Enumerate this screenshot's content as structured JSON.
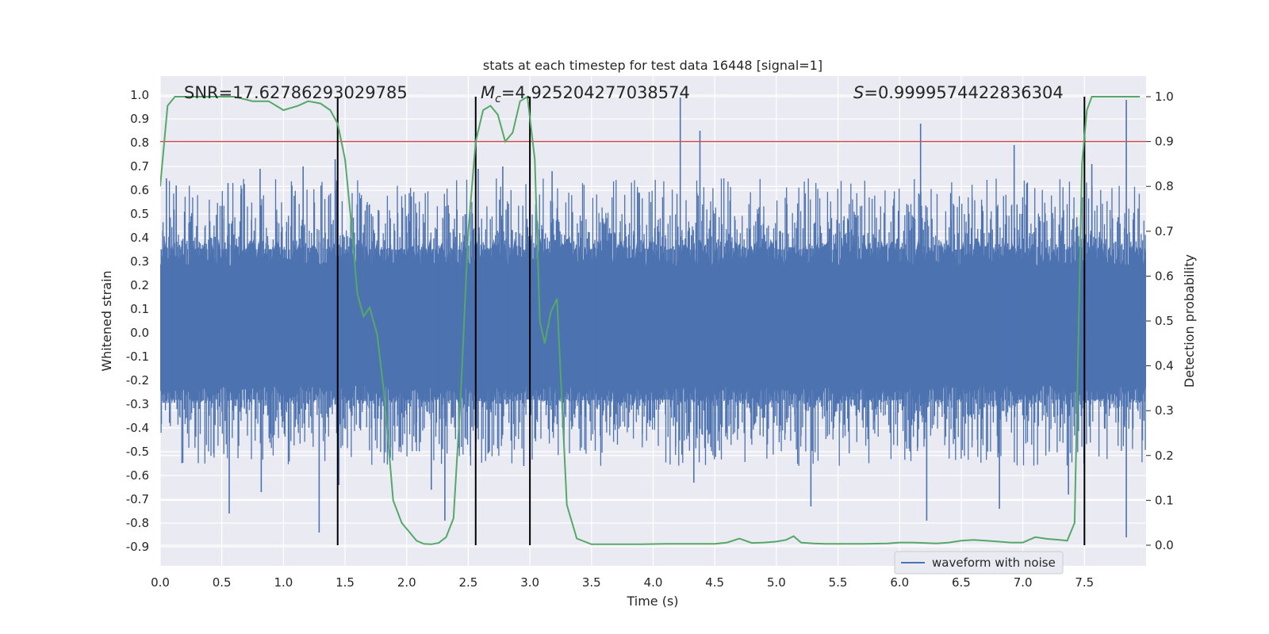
{
  "chart_data": {
    "type": "line",
    "title": "stats at each timestep for test data 16448 [signal=1]",
    "xlabel": "Time (s)",
    "ylabel_left": "Whitened strain",
    "ylabel_right": "Detection probability",
    "xlim": [
      0.0,
      8.0
    ],
    "ylim_left": [
      -0.98,
      1.08
    ],
    "ylim_right": [
      -0.046,
      1.046
    ],
    "x_ticks": [
      "0.0",
      "0.5",
      "1.0",
      "1.5",
      "2.0",
      "2.5",
      "3.0",
      "3.5",
      "4.0",
      "4.5",
      "5.0",
      "5.5",
      "6.0",
      "6.5",
      "7.0",
      "7.5"
    ],
    "left_ticks": [
      "1.0",
      "0.9",
      "0.8",
      "0.7",
      "0.6",
      "0.5",
      "0.4",
      "0.3",
      "0.2",
      "0.1",
      "0.0",
      "-0.1",
      "-0.2",
      "-0.3",
      "-0.4",
      "-0.5",
      "-0.6",
      "-0.7",
      "-0.8",
      "-0.9"
    ],
    "right_ticks": [
      "1.0",
      "0.9",
      "0.8",
      "0.7",
      "0.6",
      "0.5",
      "0.4",
      "0.3",
      "0.2",
      "0.1",
      "0.0"
    ],
    "annotations": {
      "snr": "SNR=17.62786293029785",
      "mc_symbol": "M",
      "mc_sub": "c",
      "mc_value": "=4.925204277038574",
      "s_symbol": "S",
      "s_value": "=0.9999574422836304"
    },
    "threshold_probability": 0.9,
    "vertical_markers_s": [
      1.44,
      2.56,
      3.0,
      7.5
    ],
    "series": [
      {
        "name": "waveform with noise",
        "color": "#4c72b0",
        "axis": "left",
        "note": "dense noisy strain, core band approx -0.3 to 0.45",
        "peaks": [
          [
            0.05,
            0.65
          ],
          [
            0.13,
            0.62
          ],
          [
            0.55,
            0.63
          ],
          [
            0.81,
            0.69
          ],
          [
            1.16,
            0.7
          ],
          [
            1.42,
            0.73
          ],
          [
            2.58,
            0.69
          ],
          [
            2.78,
            0.7
          ],
          [
            3.18,
            0.68
          ],
          [
            4.22,
            0.99
          ],
          [
            4.38,
            0.85
          ],
          [
            6.17,
            0.88
          ],
          [
            6.93,
            0.79
          ],
          [
            7.56,
            0.71
          ],
          [
            7.84,
            0.98
          ]
        ],
        "troughs": [
          [
            0.56,
            -0.76
          ],
          [
            0.82,
            -0.67
          ],
          [
            1.29,
            -0.84
          ],
          [
            1.45,
            -0.64
          ],
          [
            2.2,
            -0.66
          ],
          [
            2.31,
            -0.79
          ],
          [
            2.95,
            -0.56
          ],
          [
            4.33,
            -0.63
          ],
          [
            5.28,
            -0.73
          ],
          [
            6.22,
            -0.79
          ],
          [
            6.81,
            -0.74
          ],
          [
            7.37,
            -0.68
          ],
          [
            7.84,
            -0.86
          ]
        ]
      },
      {
        "name": "detection probability",
        "color": "#55a868",
        "axis": "right",
        "x": [
          0.0,
          0.06,
          0.12,
          0.3,
          0.45,
          0.6,
          0.75,
          0.88,
          1.0,
          1.06,
          1.12,
          1.2,
          1.3,
          1.38,
          1.44,
          1.5,
          1.55,
          1.6,
          1.65,
          1.7,
          1.76,
          1.82,
          1.89,
          1.96,
          2.02,
          2.08,
          2.14,
          2.2,
          2.26,
          2.32,
          2.38,
          2.44,
          2.5,
          2.56,
          2.62,
          2.68,
          2.74,
          2.8,
          2.86,
          2.92,
          2.98,
          3.04,
          3.08,
          3.12,
          3.17,
          3.22,
          3.3,
          3.38,
          3.5,
          3.7,
          3.9,
          4.1,
          4.3,
          4.5,
          4.6,
          4.7,
          4.8,
          4.9,
          5.0,
          5.08,
          5.14,
          5.2,
          5.3,
          5.4,
          5.5,
          5.7,
          5.9,
          6.0,
          6.1,
          6.2,
          6.3,
          6.4,
          6.5,
          6.6,
          6.7,
          6.8,
          6.9,
          7.0,
          7.1,
          7.2,
          7.3,
          7.36,
          7.42,
          7.48,
          7.52,
          7.56,
          7.6,
          7.8,
          7.95
        ],
        "values": [
          0.8,
          0.98,
          1.0,
          1.0,
          1.0,
          1.0,
          0.99,
          0.99,
          0.97,
          0.975,
          0.98,
          0.99,
          0.985,
          0.97,
          0.94,
          0.86,
          0.72,
          0.56,
          0.51,
          0.53,
          0.47,
          0.33,
          0.1,
          0.05,
          0.03,
          0.01,
          0.003,
          0.002,
          0.005,
          0.018,
          0.06,
          0.34,
          0.7,
          0.9,
          0.97,
          0.98,
          0.96,
          0.9,
          0.92,
          0.99,
          1.0,
          0.86,
          0.5,
          0.45,
          0.52,
          0.55,
          0.09,
          0.015,
          0.002,
          0.002,
          0.002,
          0.003,
          0.003,
          0.003,
          0.006,
          0.015,
          0.005,
          0.006,
          0.008,
          0.012,
          0.02,
          0.006,
          0.004,
          0.003,
          0.003,
          0.003,
          0.004,
          0.006,
          0.006,
          0.005,
          0.004,
          0.006,
          0.01,
          0.012,
          0.01,
          0.008,
          0.006,
          0.006,
          0.018,
          0.014,
          0.012,
          0.01,
          0.05,
          0.85,
          0.97,
          1.0,
          1.0,
          1.0,
          1.0
        ]
      }
    ],
    "legend": {
      "placement": "bottom-right",
      "entries": [
        "waveform with noise"
      ]
    },
    "grid": true,
    "colors": {
      "background": "#eaeaf2",
      "grid": "#ffffff",
      "threshold": "#c44e52",
      "marker": "#000000"
    }
  }
}
